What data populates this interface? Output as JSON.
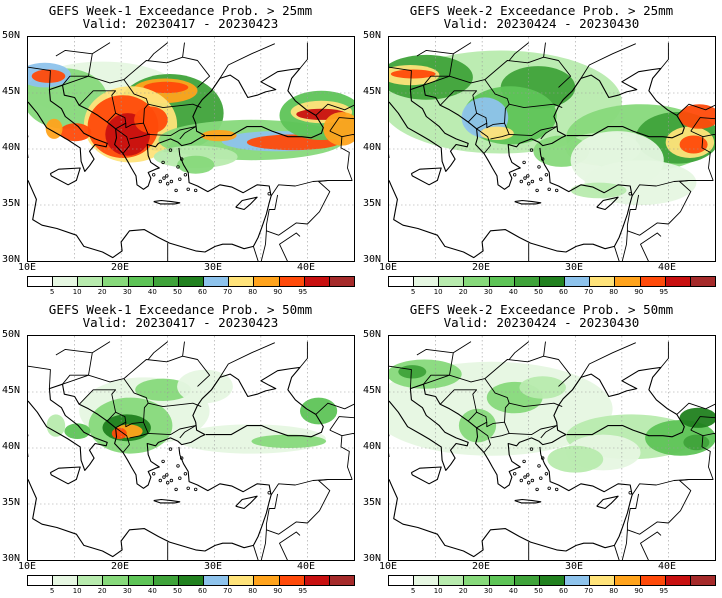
{
  "panels": [
    {
      "title": "GEFS Week-1 Exceedance Prob. > 25mm",
      "valid": "Valid: 20230417 - 20230423"
    },
    {
      "title": "GEFS Week-2 Exceedance Prob. > 25mm",
      "valid": "Valid: 20230424 - 20230430"
    },
    {
      "title": "GEFS Week-1 Exceedance Prob. > 50mm",
      "valid": "Valid: 20230417 - 20230423"
    },
    {
      "title": "GEFS Week-2 Exceedance Prob. > 50mm",
      "valid": "Valid: 20230424 - 20230430"
    }
  ],
  "axes": {
    "lat_labels": [
      "50N",
      "45N",
      "40N",
      "35N",
      "30N"
    ],
    "lon_labels": [
      "10E",
      "20E",
      "30E",
      "40E"
    ]
  },
  "colorbar": {
    "labels": [
      "5",
      "10",
      "20",
      "30",
      "40",
      "50",
      "60",
      "70",
      "80",
      "90",
      "95"
    ],
    "colors": [
      "#ffffff",
      "#e6f7e2",
      "#b8ebae",
      "#87d97b",
      "#5ec457",
      "#3fa33a",
      "#21811f",
      "#8ec3ec",
      "#ffe37a",
      "#ffa31c",
      "#ff4a0a",
      "#c81010",
      "#a52a2a"
    ]
  },
  "map_colors": {
    "land": "#ffffff",
    "coast": "#000000",
    "grid": "#9a9a9a",
    "p5": "#e6f7e2",
    "p10": "#b8ebae",
    "p20": "#87d97b",
    "p30": "#5ec457",
    "p40": "#3fa33a",
    "p50": "#21811f",
    "p60": "#8ec3ec",
    "p70": "#ffe37a",
    "p80": "#ffa31c",
    "p90": "#ff4a0a",
    "p95": "#c81010"
  }
}
